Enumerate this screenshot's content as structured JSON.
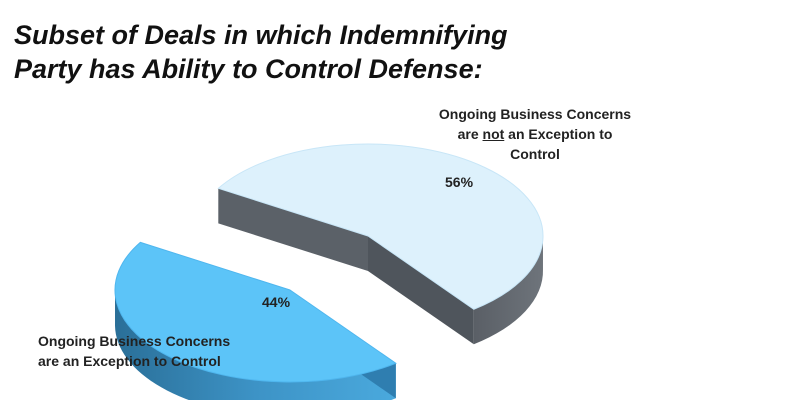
{
  "chart_data": {
    "type": "pie",
    "title_lines": [
      "Subset of Deals in which Indemnifying",
      "Party has Ability to Control Defense:"
    ],
    "slices": [
      {
        "label_lines": [
          [
            "Ongoing Business Concerns"
          ],
          [
            "are ",
            "not",
            " an Exception to"
          ],
          [
            "Control"
          ]
        ],
        "value": 56,
        "value_label": "56%",
        "color": "#ddf1fc"
      },
      {
        "label_lines": [
          [
            "Ongoing Business Concerns"
          ],
          [
            "are an Exception to Control"
          ]
        ],
        "value": 44,
        "value_label": "44%",
        "color": "#5cc4f8"
      }
    ]
  }
}
